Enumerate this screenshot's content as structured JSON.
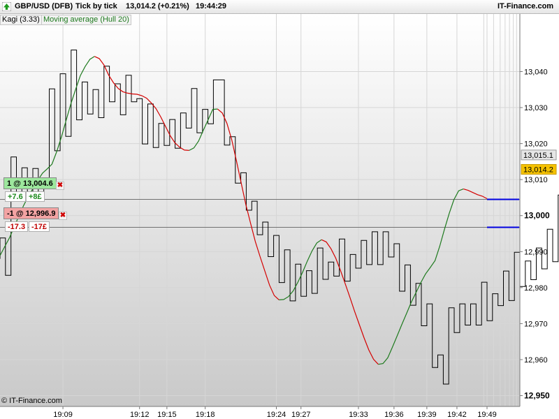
{
  "header": {
    "symbol": "GBP/USD (DFB)",
    "timeframe": "Tick by tick",
    "last_change": "13,014.2 (+0.21%)",
    "clock": "19:44:29",
    "brand": "IT-Finance.com"
  },
  "legend": {
    "kagi": "Kagi (3.33)",
    "moving_average": "Moving average (Hull 20)"
  },
  "orders": {
    "buy": {
      "label": "1 @ 13,004.6",
      "pnl_points": "+7.6",
      "pnl_amount": "+8£",
      "price": 13004.6,
      "color": "#1e8a1e"
    },
    "sell": {
      "label": "-1 @ 12,996.9",
      "pnl_points": "-17.3",
      "pnl_amount": "-17£",
      "price": 12996.9,
      "color": "#c00000"
    },
    "close_glyph": "✖"
  },
  "watermark": "© IT-Finance.com",
  "chart_data": {
    "type": "line",
    "subtype": "kagi",
    "title": "GBP/USD (DFB)",
    "y_axis": {
      "ticks": [
        12950,
        12960,
        12970,
        12980,
        12990,
        13000,
        13010,
        13020,
        13030,
        13040
      ],
      "tick_labels": [
        "12,950",
        "12,960",
        "12,970",
        "12,980",
        "12,990",
        "13,000",
        "13,010",
        "13,020",
        "13,030",
        "13,040"
      ],
      "bold_ticks": [
        12950,
        13000
      ],
      "range": [
        12947,
        13056
      ]
    },
    "x_axis": {
      "tick_labels": [
        "19:09",
        "19:12",
        "19:15",
        "19:18",
        "19:24",
        "19:27",
        "19:33",
        "19:36",
        "19:39",
        "19:42",
        "19:49"
      ],
      "tick_index": [
        11.5,
        25.5,
        30.5,
        37.5,
        50.5,
        55,
        65.5,
        72,
        78,
        83.5,
        89
      ],
      "range": [
        0,
        95
      ]
    },
    "kagi": {
      "reversals": [
        12988,
        12993.8,
        12983.4,
        13016.3,
        13006.2,
        13013.3,
        13006.3,
        13013.1,
        13005.9,
        13010.4,
        13035.2,
        13018,
        13039.4,
        13022,
        13046,
        13026.6,
        13037.1,
        13028.2,
        13035,
        13027.2,
        13041.5,
        13031.6,
        13036.6,
        13028,
        13039,
        13031.6,
        13032.5,
        13019.9,
        13031,
        13018.9,
        13025.6,
        13019.5,
        13026.7,
        13018.7,
        13028.5,
        13024.3,
        13035.3,
        13023,
        13029.5,
        13025.5,
        13037.7,
        13037.7,
        13019.6,
        13021.9,
        13009,
        13011.9,
        13001.5,
        13004,
        12994.7,
        12998.2,
        12988.6,
        12994.5,
        12981.4,
        12990.5,
        12976.3,
        12986.5,
        12977.6,
        12984.7,
        12978.4,
        12991,
        12982.3,
        12987.1,
        12983.2,
        12993.5,
        12981.8,
        12989.2,
        12985.4,
        12993.1,
        12986.4,
        12995.5,
        12986.4,
        12995.5,
        12988.5,
        12992.2,
        12979,
        12986.3,
        12975.1,
        12981.2,
        12969.4,
        12975.5,
        12957.8,
        12961.3,
        12953.2,
        12974.4,
        12967.5,
        12975.5,
        12969.6,
        12975.5,
        12969.6,
        12981.5,
        12970.8,
        12978.3,
        12975,
        12984.6,
        12976.4,
        12989.8,
        12980.3,
        12987.4,
        12982.2,
        12991,
        12985.2,
        12996.2,
        12987.2,
        13005.7,
        12994.5,
        13002.4,
        12996.3,
        13004.1,
        12994.1,
        13002.4,
        12995.9,
        13001.9,
        12995.6,
        13002,
        12995.4,
        13014.8
      ],
      "color": "#000000"
    },
    "moving_average": {
      "name": "Moving average (Hull 20)",
      "values": [
        12988.9,
        12991.4,
        12993.8,
        12996.9,
        12999.9,
        13002.8,
        13005.4,
        13007.6,
        13009.8,
        13011.8,
        13013,
        13014.3,
        13017.8,
        13021.9,
        13026.5,
        13031.1,
        13035.1,
        13038.9,
        13041.4,
        13043.4,
        13044.2,
        13043.6,
        13041.8,
        13039,
        13036.9,
        13035.3,
        13034.4,
        13034,
        13033.8,
        13033.7,
        13033.3,
        13032.6,
        13031.3,
        13029.7,
        13027.4,
        13024.8,
        13022.2,
        13020.2,
        13019,
        13018.2,
        13018.1,
        13018.8,
        13020.7,
        13023.7,
        13026.6,
        13029.5,
        13029.6,
        13028.5,
        13025.6,
        13021.1,
        13015.2,
        13009.1,
        13003,
        12997.8,
        12992.8,
        12988.6,
        12984.6,
        12980.7,
        12977.8,
        12976.6,
        12976.7,
        12977.5,
        12979.1,
        12981.5,
        12984.3,
        12987.4,
        12990.2,
        12992.4,
        12993.3,
        12992.7,
        12990.8,
        12988.2,
        12984.8,
        12981.1,
        12977.3,
        12973.4,
        12969.7,
        12966,
        12962.7,
        12960.1,
        12958.7,
        12958.9,
        12960.5,
        12963.5,
        12966.6,
        12969.8,
        12972.9,
        12976,
        12978.7,
        12981.4,
        12983.8,
        12985.6,
        12987.5,
        12991.5,
        12996.2,
        13000.6,
        13004.4,
        13006.9,
        13007.4,
        13007,
        13006.4,
        13005.8,
        13005.4,
        13004.7
      ],
      "x_range": [
        0,
        89
      ],
      "rising_color": "#1e7a1e",
      "falling_color": "#d40000"
    },
    "price_tags": [
      {
        "label": "13,015.1",
        "value": 13015.1,
        "style": "gray"
      },
      {
        "label": "13,014.2",
        "value": 13014.2,
        "style": "gold"
      }
    ],
    "horizontal_lines": [
      {
        "name": "buy-level",
        "value": 13004.6,
        "color": "#707070"
      },
      {
        "name": "sell-level",
        "value": 12996.9,
        "color": "#707070"
      }
    ],
    "order_markers": [
      {
        "value": 13004.6,
        "color": "#0000e0"
      },
      {
        "value": 12996.9,
        "color": "#0000e0"
      }
    ],
    "grid": true
  }
}
